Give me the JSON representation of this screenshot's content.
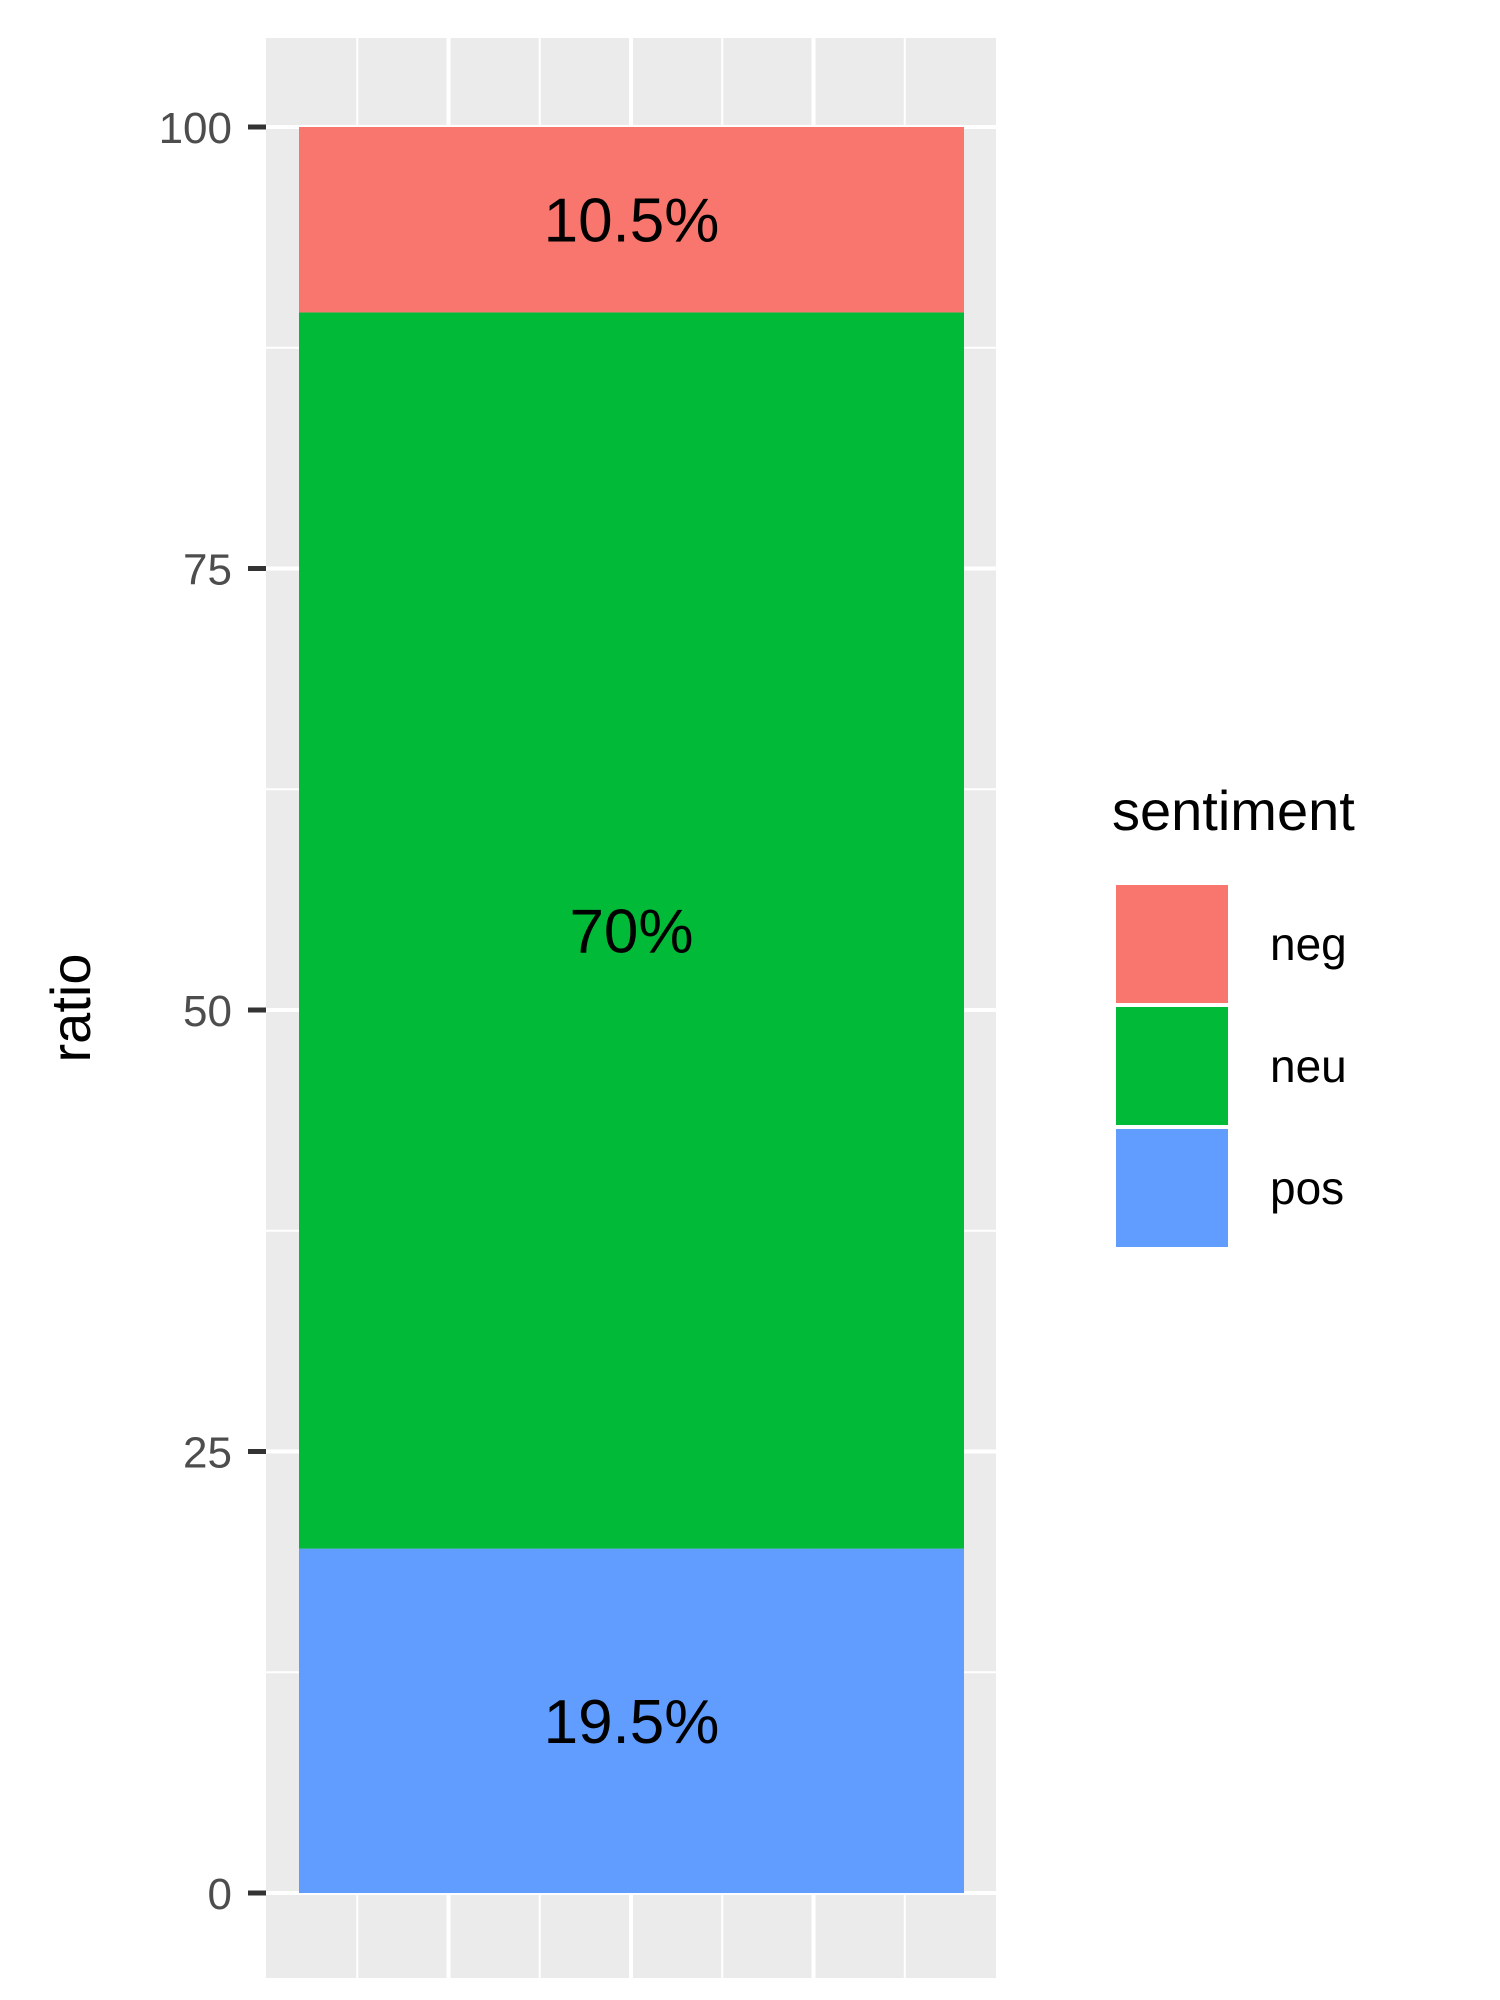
{
  "chart_data": {
    "type": "bar",
    "stacked": true,
    "ylabel": "ratio",
    "xlabel": "",
    "ylim": [
      0,
      100
    ],
    "yticks": [
      "0",
      "25",
      "50",
      "75",
      "100"
    ],
    "grid": true,
    "legend": {
      "title": "sentiment",
      "position": "right",
      "entries": [
        "neg",
        "neu",
        "pos"
      ]
    },
    "series": [
      {
        "name": "pos",
        "value": 19.5,
        "label": "19.5%",
        "color": "#619CFF"
      },
      {
        "name": "neu",
        "value": 70,
        "label": "70%",
        "color": "#00BA38"
      },
      {
        "name": "neg",
        "value": 10.5,
        "label": "10.5%",
        "color": "#F8766D"
      }
    ],
    "colors": {
      "panel": "#EBEBEB",
      "gridline": "#FFFFFF"
    }
  }
}
